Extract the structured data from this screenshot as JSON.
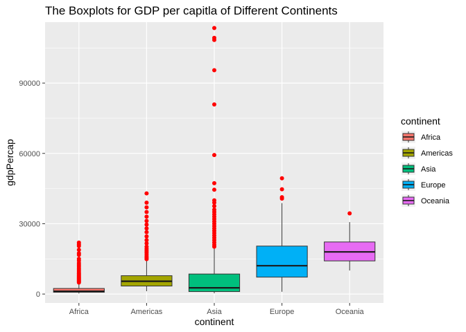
{
  "chart_data": {
    "type": "boxplot",
    "title": "The Boxplots for GDP per capitla of Different Continents",
    "xlabel": "continent",
    "ylabel": "gdpPercap",
    "ylim": [
      -3800,
      116000
    ],
    "yticks": [
      0,
      30000,
      60000,
      90000
    ],
    "ytick_labels": [
      "0",
      "30000",
      "60000",
      "90000"
    ],
    "grid": true,
    "legend_position": "right",
    "legend_title": "continent",
    "outlier_color": "#ff0000",
    "categories": [
      "Africa",
      "Americas",
      "Asia",
      "Europe",
      "Oceania"
    ],
    "series": [
      {
        "name": "Africa",
        "color": "#f8766d",
        "whisker_low": 241,
        "q1": 761,
        "median": 1192,
        "q3": 2377,
        "whisker_high": 4750,
        "outliers": [
          4900,
          5200,
          5500,
          5800,
          6100,
          6400,
          6800,
          7100,
          7500,
          7900,
          8300,
          8700,
          9200,
          9800,
          10400,
          11000,
          11700,
          12400,
          13200,
          14200,
          15000,
          16700,
          17400,
          18900,
          20500,
          21200,
          21950
        ]
      },
      {
        "name": "Americas",
        "color": "#a3a500",
        "whisker_low": 1202,
        "q1": 3428,
        "median": 5466,
        "q3": 7830,
        "whisker_high": 14300,
        "outliers": [
          14900,
          15500,
          16200,
          17000,
          17800,
          18500,
          19300,
          20200,
          21600,
          23000,
          24600,
          26400,
          28000,
          29600,
          31200,
          33000,
          35000,
          37000,
          39000,
          42950
        ]
      },
      {
        "name": "Asia",
        "color": "#00bf7d",
        "whisker_low": 331,
        "q1": 1057,
        "median": 2647,
        "q3": 8549,
        "whisker_high": 19700,
        "outliers": [
          20200,
          21000,
          22000,
          23000,
          24000,
          25000,
          26000,
          27000,
          28000,
          29000,
          30000,
          31000,
          32000,
          33000,
          34000,
          35000,
          36000,
          37500,
          39000,
          40000,
          44500,
          47300,
          59300,
          80900,
          95500,
          108400,
          109300,
          113500
        ]
      },
      {
        "name": "Europe",
        "color": "#00b0f6",
        "whisker_low": 974,
        "q1": 7213,
        "median": 12082,
        "q3": 20461,
        "whisker_high": 38800,
        "outliers": [
          40700,
          41300,
          44700,
          49400
        ]
      },
      {
        "name": "Oceania",
        "color": "#e76bf3",
        "whisker_low": 10040,
        "q1": 14142,
        "median": 17983,
        "q3": 22214,
        "whisker_high": 30700,
        "outliers": [
          34400
        ]
      }
    ]
  }
}
